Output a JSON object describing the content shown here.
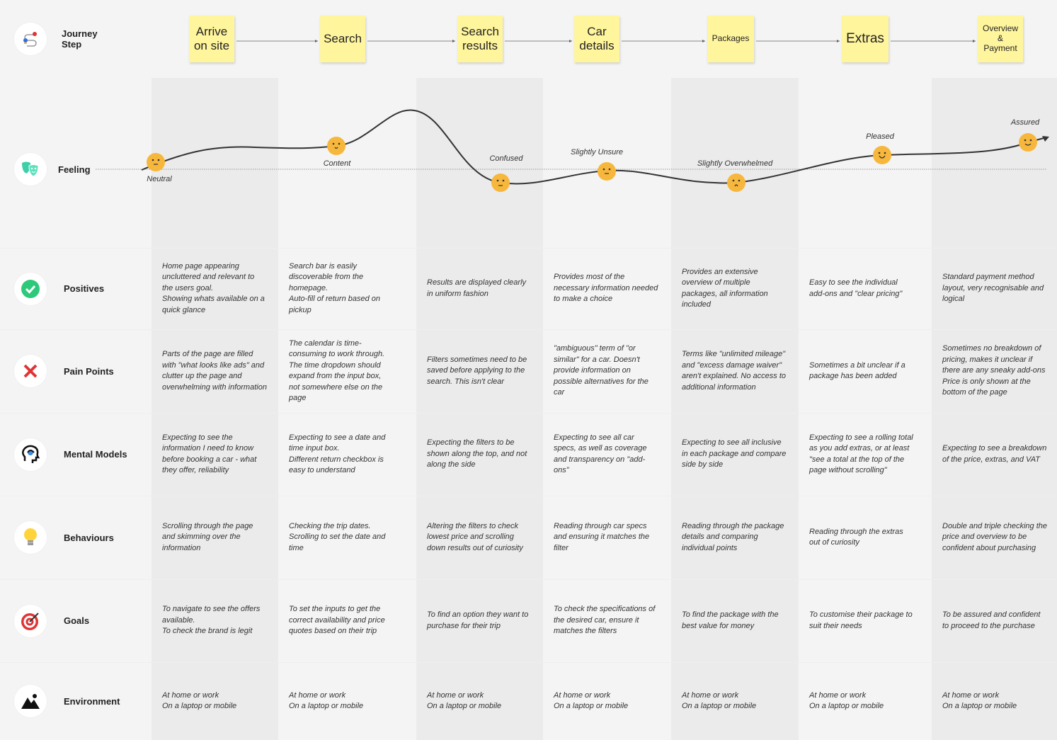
{
  "rows": {
    "journey": "Journey\nStep",
    "feeling": "Feeling",
    "positives": "Positives",
    "pain": "Pain Points",
    "mental": "Mental Models",
    "behaviours": "Behaviours",
    "goals": "Goals",
    "environment": "Environment"
  },
  "steps": [
    {
      "label": "Arrive\non site"
    },
    {
      "label": "Search"
    },
    {
      "label": "Search\nresults"
    },
    {
      "label": "Car\ndetails"
    },
    {
      "label": "Packages"
    },
    {
      "label": "Extras"
    },
    {
      "label": "Overview\n&\nPayment"
    }
  ],
  "feelings": [
    {
      "label": "Neutral",
      "face": "neutral"
    },
    {
      "label": "Content",
      "face": "content"
    },
    {
      "label": "Confused",
      "face": "confused"
    },
    {
      "label": "Slightly Unsure",
      "face": "unsure"
    },
    {
      "label": "Slightly Overwhelmed",
      "face": "overwhelmed"
    },
    {
      "label": "Pleased",
      "face": "pleased"
    },
    {
      "label": "Assured",
      "face": "assured"
    }
  ],
  "positives": [
    "Home page appearing uncluttered and relevant to the users goal.\nShowing whats available on a quick glance",
    "Search bar is easily discoverable from the homepage.\nAuto-fill of return based on pickup",
    "Results are displayed clearly in uniform fashion",
    "Provides most of the necessary information needed to make a choice",
    "Provides an extensive overview of multiple packages, all information included",
    "Easy to see the individual add-ons and \"clear pricing\"",
    "Standard payment method layout, very recognisable and logical"
  ],
  "pain": [
    "Parts of the page are filled with \"what looks like ads\" and clutter up the page and overwhelming with information",
    "The calendar is time-consuming to work through.\nThe time dropdown should expand from the input box, not somewhere else on the page",
    "Filters sometimes need to be saved before applying to the search. This isn't clear",
    "\"ambiguous\" term of \"or similar\" for a car. Doesn't provide information on possible alternatives for the car",
    "Terms like \"unlimited mileage\" and \"excess damage waiver\" aren't explained. No access to additional information",
    "Sometimes a bit unclear if a package has been added",
    "Sometimes no breakdown of pricing, makes it unclear if there are any sneaky add-ons\nPrice is only shown at the bottom of the page"
  ],
  "mental": [
    "Expecting to see the information I need to know before booking a car - what they offer, reliability",
    "Expecting to see a date and time input box.\nDifferent return checkbox is easy to understand",
    "Expecting the filters to be shown along the top, and not along the side",
    "Expecting to see all car specs, as well as coverage and transparency on \"add-ons\"",
    "Expecting to see all inclusive in each package and compare side by side",
    "Expecting to see a rolling total as you add extras, or at least \"see a total at the top of the page without scrolling\"",
    "Expecting to see a breakdown of the price, extras, and VAT"
  ],
  "behaviours": [
    "Scrolling through the page and skimming over the information",
    "Checking the trip dates.\nScrolling to set the date and time",
    "Altering the filters to check lowest price and scrolling down results out of curiosity",
    "Reading through car specs and ensuring it matches the filter",
    "Reading through the package details and comparing individual points",
    "Reading through the extras out of curiosity",
    "Double and triple checking the price and overview to be confident about purchasing"
  ],
  "goals": [
    "To navigate to see the offers available.\nTo check the brand is legit",
    "To set the inputs to get the correct availability and price quotes based on their trip",
    "To find an option they want to purchase for their trip",
    "To check the specifications of the desired car, ensure it matches the filters",
    "To find the package with the best value for money",
    "To customise their package to suit their needs",
    "To be assured and confident to proceed to the purchase"
  ],
  "environment": [
    "At home or work\nOn a laptop or mobile",
    "At home or work\nOn a laptop or mobile",
    "At home or work\nOn a laptop or mobile",
    "At home or work\nOn a laptop or mobile",
    "At home or work\nOn a laptop or mobile",
    "At home or work\nOn a laptop or mobile",
    "At home or work\nOn a laptop or mobile"
  ],
  "colors": {
    "sticky": "#fff59d",
    "face": "#f6b73c",
    "teal": "#3ccfa8",
    "check": "#2dc97a",
    "cross": "#e03434"
  }
}
